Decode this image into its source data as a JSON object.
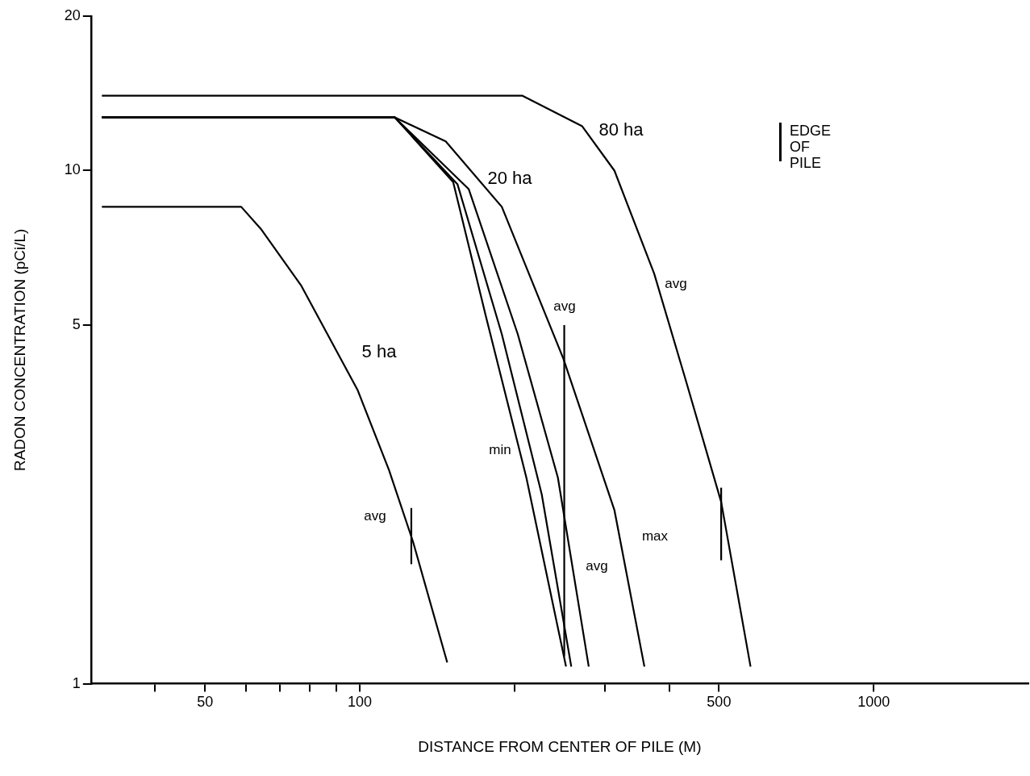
{
  "chart_data": {
    "type": "line",
    "xlabel": "DISTANCE FROM CENTER OF PILE (M)",
    "ylabel": "RADON CONCENTRATION (pCi/L)",
    "log": "xy",
    "grid": false,
    "legend": false,
    "marker": "none",
    "line_style": "solid",
    "xlim": [
      30,
      2000
    ],
    "xticks": [
      {
        "value": 40,
        "label": null
      },
      50,
      {
        "value": 60,
        "label": null
      },
      {
        "value": 70,
        "label": null
      },
      {
        "value": 80,
        "label": null
      },
      {
        "value": 90,
        "label": null
      },
      100,
      {
        "value": 200,
        "label": null
      },
      {
        "value": 300,
        "label": null
      },
      {
        "value": 400,
        "label": null
      },
      500,
      1000
    ],
    "ylim": [
      1,
      20
    ],
    "yticks": [
      1,
      5,
      10,
      20
    ],
    "series": [
      {
        "color": "#000000",
        "x": [
          31.5,
          58.8,
          64.2,
          77,
          99,
          114,
          127,
          148
        ],
        "values": [
          8.5,
          8.5,
          7.7,
          5.96,
          3.74,
          2.61,
          1.89,
          1.1
        ]
      },
      {
        "color": "#000000",
        "x": [
          31.5,
          117,
          152,
          176,
          211,
          252
        ],
        "values": [
          12.7,
          12.7,
          9.5,
          5.2,
          2.52,
          1.08
        ]
      },
      {
        "color": "#000000",
        "x": [
          31.5,
          117,
          155,
          189,
          226,
          258
        ],
        "values": [
          12.7,
          12.7,
          9.4,
          4.8,
          2.34,
          1.08
        ]
      },
      {
        "color": "#000000",
        "x": [
          31.5,
          117,
          163,
          203,
          243,
          279
        ],
        "values": [
          12.7,
          12.7,
          9.2,
          4.8,
          2.52,
          1.08
        ]
      },
      {
        "color": "#000000",
        "x": [
          31.5,
          117,
          147,
          189,
          249,
          313,
          358
        ],
        "values": [
          12.7,
          12.7,
          11.4,
          8.5,
          4.3,
          2.18,
          1.08
        ]
      },
      {
        "color": "#000000",
        "x": [
          31.5,
          207,
          271,
          313,
          374,
          432,
          505,
          576
        ],
        "values": [
          14,
          14,
          12.2,
          10,
          6.3,
          3.87,
          2.26,
          1.08
        ]
      },
      {
        "color": "#000000",
        "x": [
          126,
          126
        ],
        "values": [
          1.71,
          2.2
        ]
      },
      {
        "color": "#000000",
        "x": [
          250,
          250
        ],
        "values": [
          1.13,
          5
        ]
      },
      {
        "color": "#000000",
        "x": [
          505,
          505
        ],
        "values": [
          1.74,
          2.41
        ]
      }
    ],
    "annotations": [
      "80 ha",
      "20 ha",
      "5 ha",
      "avg",
      "avg",
      "min",
      "avg",
      "avg",
      "max",
      "EDGE OF PILE"
    ]
  }
}
